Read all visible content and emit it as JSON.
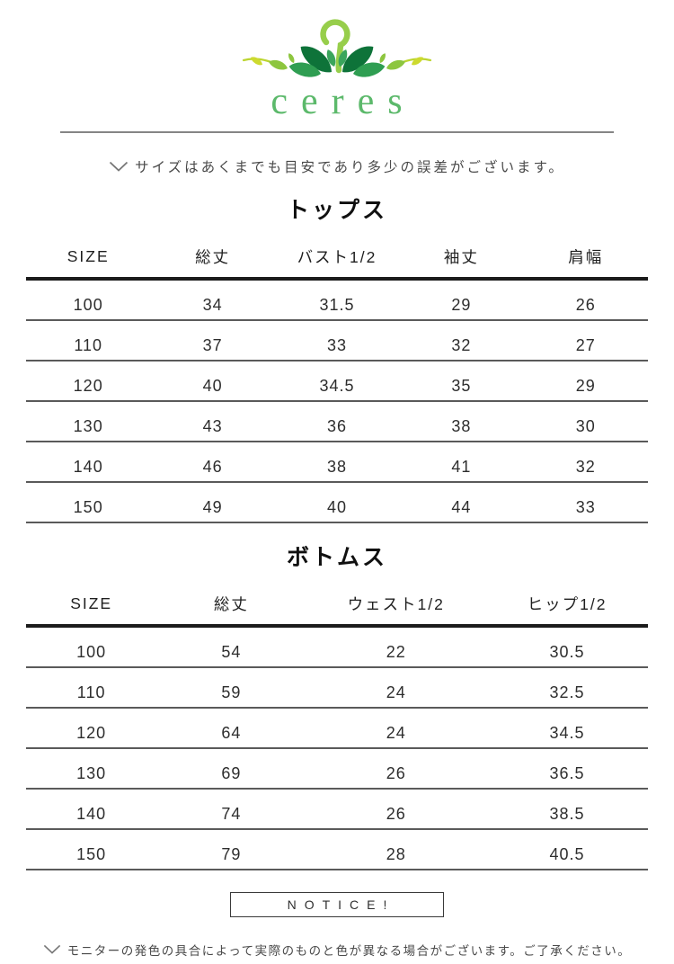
{
  "theme": {
    "brand-green": "#5cb96b",
    "hook-green": "#97ce4b",
    "leaf-dark": "#0e7339",
    "leaf-mid": "#2f9e52",
    "leaf-light": "#8dc63f",
    "leaf-yellow": "#cdda2f",
    "text-dark": "#1c1c1c",
    "text-gray": "#4a4a4a",
    "line-gray": "#858585"
  },
  "logo": {
    "brand": "ceres",
    "icon": "leaf-hanger"
  },
  "size_note": {
    "text": "サイズはあくまでも目安であり多少の誤差がございます。"
  },
  "tops_table": {
    "title": "トップス",
    "headers": [
      "SIZE",
      "総丈",
      "バスト1/2",
      "袖丈",
      "肩幅"
    ],
    "rows": [
      [
        "100",
        "34",
        "31.5",
        "29",
        "26"
      ],
      [
        "110",
        "37",
        "33",
        "32",
        "27"
      ],
      [
        "120",
        "40",
        "34.5",
        "35",
        "29"
      ],
      [
        "130",
        "43",
        "36",
        "38",
        "30"
      ],
      [
        "140",
        "46",
        "38",
        "41",
        "32"
      ],
      [
        "150",
        "49",
        "40",
        "44",
        "33"
      ]
    ]
  },
  "bottoms_table": {
    "title": "ボトムス",
    "headers": [
      "SIZE",
      "総丈",
      "ウェスト1/2",
      "ヒップ1/2"
    ],
    "rows": [
      [
        "100",
        "54",
        "22",
        "30.5"
      ],
      [
        "110",
        "59",
        "24",
        "32.5"
      ],
      [
        "120",
        "64",
        "24",
        "34.5"
      ],
      [
        "130",
        "69",
        "26",
        "36.5"
      ],
      [
        "140",
        "74",
        "26",
        "38.5"
      ],
      [
        "150",
        "79",
        "28",
        "40.5"
      ]
    ]
  },
  "notice": {
    "label": "NOTICE!"
  },
  "monitor_note": {
    "text": "モニターの発色の具合によって実際のものと色が異なる場合がございます。ご了承ください。"
  }
}
